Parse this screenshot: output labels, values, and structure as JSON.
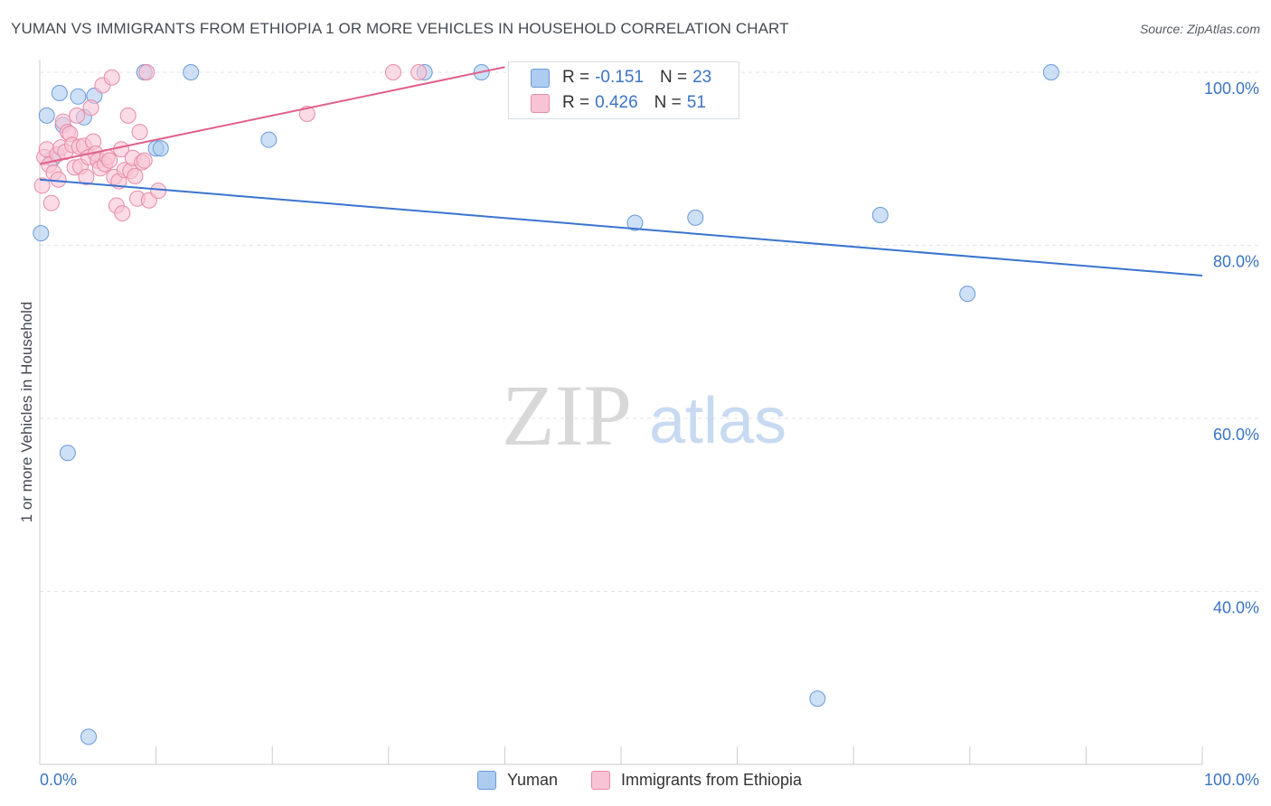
{
  "header": {
    "title": "YUMAN VS IMMIGRANTS FROM ETHIOPIA 1 OR MORE VEHICLES IN HOUSEHOLD CORRELATION CHART",
    "source": "Source: ZipAtlas.com"
  },
  "watermark": {
    "zip": "ZIP",
    "atlas": "atlas"
  },
  "legend": {
    "rows": [
      {
        "r_label": "R =",
        "r_value": "-0.151",
        "n_label": "N =",
        "n_value": "23",
        "color": "#aecbf0",
        "border": "#6a9ad8"
      },
      {
        "r_label": "R =",
        "r_value": "0.426",
        "n_label": "N =",
        "n_value": "51",
        "color": "#f8c3d4",
        "border": "#e88aa8"
      }
    ]
  },
  "bottom_legend": [
    {
      "label": "Yuman",
      "color": "#aecbf0",
      "border": "#6a9ad8"
    },
    {
      "label": "Immigrants from Ethiopia",
      "color": "#f8c3d4",
      "border": "#e88aa8"
    }
  ],
  "chart_data": {
    "type": "scatter",
    "title": "YUMAN VS IMMIGRANTS FROM ETHIOPIA 1 OR MORE VEHICLES IN HOUSEHOLD CORRELATION CHART",
    "xlabel": "",
    "ylabel": "1 or more Vehicles in Household",
    "xlim": [
      0,
      100
    ],
    "ylim": [
      21,
      102
    ],
    "x_tick_labels": [
      "0.0%",
      "100.0%"
    ],
    "y_ticks": [
      100,
      80,
      60,
      40
    ],
    "y_tick_labels": [
      "100.0%",
      "80.0%",
      "60.0%",
      "40.0%"
    ],
    "grid": true,
    "series": [
      {
        "name": "Yuman",
        "color": "#aecbf0",
        "stroke": "#6a9ad8",
        "line_color": "#3a74d0",
        "trend": {
          "x0": 0,
          "y0": 87.6,
          "x1": 100,
          "y1": 76.5
        },
        "points": [
          {
            "x": 0.1,
            "y": 81.4
          },
          {
            "x": 0.6,
            "y": 95.0
          },
          {
            "x": 1.7,
            "y": 97.6
          },
          {
            "x": 3.3,
            "y": 97.2
          },
          {
            "x": 4.7,
            "y": 97.3
          },
          {
            "x": 3.8,
            "y": 94.8
          },
          {
            "x": 2.0,
            "y": 93.9
          },
          {
            "x": 1.1,
            "y": 90.0
          },
          {
            "x": 9.0,
            "y": 100.0
          },
          {
            "x": 13.0,
            "y": 100.0
          },
          {
            "x": 10.0,
            "y": 91.2
          },
          {
            "x": 10.4,
            "y": 91.2
          },
          {
            "x": 19.7,
            "y": 92.2
          },
          {
            "x": 33.1,
            "y": 100.0
          },
          {
            "x": 38.0,
            "y": 100.0
          },
          {
            "x": 51.2,
            "y": 82.6
          },
          {
            "x": 56.4,
            "y": 83.2
          },
          {
            "x": 72.3,
            "y": 83.5
          },
          {
            "x": 79.8,
            "y": 74.4
          },
          {
            "x": 87.0,
            "y": 100.0
          },
          {
            "x": 2.4,
            "y": 56.0
          },
          {
            "x": 66.9,
            "y": 27.6
          },
          {
            "x": 4.2,
            "y": 23.2
          }
        ]
      },
      {
        "name": "Immigrants from Ethiopia",
        "color": "#f8c3d4",
        "stroke": "#e88aa8",
        "line_color": "#e0608c",
        "trend": {
          "x0": 0,
          "y0": 89.4,
          "x1": 40,
          "y1": 100.6
        },
        "points": [
          {
            "x": 0.2,
            "y": 86.9
          },
          {
            "x": 0.4,
            "y": 90.2
          },
          {
            "x": 0.6,
            "y": 91.1
          },
          {
            "x": 0.8,
            "y": 89.3
          },
          {
            "x": 1.0,
            "y": 84.9
          },
          {
            "x": 1.2,
            "y": 88.4
          },
          {
            "x": 1.5,
            "y": 90.5
          },
          {
            "x": 1.6,
            "y": 87.6
          },
          {
            "x": 1.8,
            "y": 91.3
          },
          {
            "x": 2.0,
            "y": 94.3
          },
          {
            "x": 2.2,
            "y": 90.8
          },
          {
            "x": 2.4,
            "y": 93.1
          },
          {
            "x": 2.6,
            "y": 92.9
          },
          {
            "x": 2.8,
            "y": 91.6
          },
          {
            "x": 3.0,
            "y": 89.0
          },
          {
            "x": 3.2,
            "y": 95.0
          },
          {
            "x": 3.4,
            "y": 91.4
          },
          {
            "x": 3.5,
            "y": 89.1
          },
          {
            "x": 3.8,
            "y": 91.5
          },
          {
            "x": 4.0,
            "y": 87.9
          },
          {
            "x": 4.2,
            "y": 90.2
          },
          {
            "x": 4.4,
            "y": 95.9
          },
          {
            "x": 4.6,
            "y": 92.0
          },
          {
            "x": 4.8,
            "y": 90.6
          },
          {
            "x": 5.0,
            "y": 89.8
          },
          {
            "x": 5.2,
            "y": 88.9
          },
          {
            "x": 5.4,
            "y": 98.5
          },
          {
            "x": 5.6,
            "y": 89.4
          },
          {
            "x": 5.8,
            "y": 90.2
          },
          {
            "x": 6.0,
            "y": 89.8
          },
          {
            "x": 6.2,
            "y": 99.4
          },
          {
            "x": 6.4,
            "y": 87.9
          },
          {
            "x": 6.6,
            "y": 84.6
          },
          {
            "x": 6.8,
            "y": 87.4
          },
          {
            "x": 7.0,
            "y": 91.1
          },
          {
            "x": 7.1,
            "y": 83.7
          },
          {
            "x": 7.3,
            "y": 88.7
          },
          {
            "x": 7.6,
            "y": 95.0
          },
          {
            "x": 7.8,
            "y": 88.6
          },
          {
            "x": 8.0,
            "y": 90.1
          },
          {
            "x": 8.2,
            "y": 88.0
          },
          {
            "x": 8.4,
            "y": 85.4
          },
          {
            "x": 8.6,
            "y": 93.1
          },
          {
            "x": 8.8,
            "y": 89.6
          },
          {
            "x": 9.0,
            "y": 89.8
          },
          {
            "x": 9.2,
            "y": 100.0
          },
          {
            "x": 9.4,
            "y": 85.2
          },
          {
            "x": 10.2,
            "y": 86.3
          },
          {
            "x": 23.0,
            "y": 95.2
          },
          {
            "x": 30.4,
            "y": 100.0
          },
          {
            "x": 32.6,
            "y": 100.0
          }
        ]
      }
    ]
  }
}
